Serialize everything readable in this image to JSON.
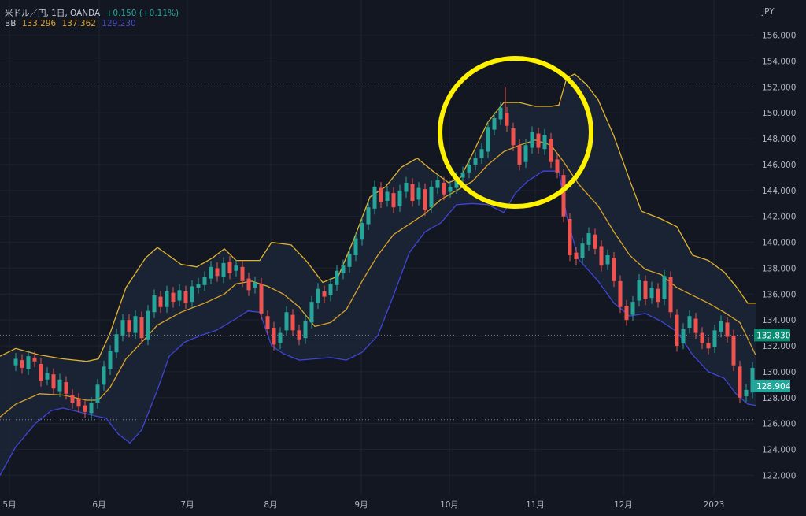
{
  "header": {
    "symbol": "米ドル／円, 1日, OANDA",
    "change": "+0.150 (+0.11%)",
    "indicator_label": "BB",
    "bb_mid": "133.296",
    "bb_upper": "137.362",
    "bb_lower": "129.230"
  },
  "colors": {
    "background": "#131722",
    "grid": "#1f2330",
    "up": "#26a69a",
    "down": "#ef5350",
    "bb_upper": "#e0b32f",
    "bb_mid": "#d9a22a",
    "bb_lower": "#3f45d6",
    "band_fill": "#1c2636",
    "highlight": "#fff200",
    "last_price_tag": "#26a69a",
    "price_line_tag": "#0b8a74"
  },
  "chart_data": {
    "type": "candlestick",
    "currency_label": "JPY",
    "ylim": [
      120.5,
      157.5
    ],
    "y_ticks": [
      "122.000",
      "124.000",
      "126.000",
      "128.000",
      "130.000",
      "132.000",
      "134.000",
      "136.000",
      "138.000",
      "140.000",
      "142.000",
      "144.000",
      "146.000",
      "148.000",
      "150.000",
      "152.000",
      "154.000",
      "156.000"
    ],
    "x_labels": [
      "5月",
      "6月",
      "7月",
      "8月",
      "9月",
      "10月",
      "11月",
      "12月",
      "2023"
    ],
    "reference_lines": [
      152.0,
      132.83,
      126.3
    ],
    "price_tags": {
      "current": "132.830",
      "last": "128.904"
    },
    "series": [
      {
        "name": "upper",
        "points": [
          [
            0,
            131.2
          ],
          [
            20,
            131.8
          ],
          [
            50,
            131.3
          ],
          [
            80,
            131.0
          ],
          [
            110,
            130.8
          ],
          [
            125,
            131.0
          ],
          [
            140,
            133.0
          ],
          [
            160,
            136.5
          ],
          [
            185,
            138.8
          ],
          [
            200,
            139.6
          ],
          [
            230,
            138.3
          ],
          [
            250,
            138.1
          ],
          [
            270,
            138.8
          ],
          [
            285,
            139.5
          ],
          [
            300,
            138.6
          ],
          [
            330,
            138.6
          ],
          [
            345,
            140.0
          ],
          [
            370,
            139.8
          ],
          [
            390,
            138.5
          ],
          [
            410,
            136.9
          ],
          [
            430,
            137.4
          ],
          [
            450,
            140.3
          ],
          [
            470,
            143.5
          ],
          [
            490,
            144.3
          ],
          [
            510,
            145.8
          ],
          [
            530,
            146.5
          ],
          [
            550,
            145.5
          ],
          [
            570,
            144.6
          ],
          [
            585,
            145.0
          ],
          [
            600,
            146.8
          ],
          [
            620,
            149.3
          ],
          [
            640,
            150.8
          ],
          [
            660,
            150.8
          ],
          [
            680,
            150.5
          ],
          [
            700,
            150.5
          ],
          [
            710,
            150.6
          ],
          [
            720,
            152.7
          ],
          [
            730,
            153.0
          ],
          [
            745,
            152.2
          ],
          [
            760,
            151.0
          ],
          [
            780,
            148.2
          ],
          [
            800,
            144.8
          ],
          [
            815,
            142.4
          ],
          [
            840,
            141.8
          ],
          [
            860,
            141.2
          ],
          [
            880,
            139.0
          ],
          [
            900,
            138.6
          ],
          [
            920,
            137.7
          ],
          [
            935,
            136.6
          ],
          [
            950,
            135.3
          ],
          [
            960,
            135.3
          ]
        ]
      },
      {
        "name": "mid",
        "points": [
          [
            0,
            126.5
          ],
          [
            20,
            127.5
          ],
          [
            50,
            128.3
          ],
          [
            80,
            128.2
          ],
          [
            110,
            127.8
          ],
          [
            125,
            127.8
          ],
          [
            140,
            128.8
          ],
          [
            160,
            131.0
          ],
          [
            185,
            132.6
          ],
          [
            200,
            133.6
          ],
          [
            230,
            134.6
          ],
          [
            260,
            135.3
          ],
          [
            285,
            136.0
          ],
          [
            300,
            136.8
          ],
          [
            320,
            137.0
          ],
          [
            340,
            136.6
          ],
          [
            360,
            136.0
          ],
          [
            380,
            135.0
          ],
          [
            400,
            133.5
          ],
          [
            420,
            133.8
          ],
          [
            440,
            134.8
          ],
          [
            460,
            137.0
          ],
          [
            480,
            139.0
          ],
          [
            500,
            140.6
          ],
          [
            520,
            141.4
          ],
          [
            540,
            142.2
          ],
          [
            560,
            143.3
          ],
          [
            580,
            144.0
          ],
          [
            600,
            144.7
          ],
          [
            620,
            146.0
          ],
          [
            640,
            147.0
          ],
          [
            660,
            147.5
          ],
          [
            680,
            147.9
          ],
          [
            700,
            147.5
          ],
          [
            715,
            146.3
          ],
          [
            735,
            144.5
          ],
          [
            760,
            142.8
          ],
          [
            780,
            140.8
          ],
          [
            800,
            139.0
          ],
          [
            820,
            137.9
          ],
          [
            840,
            137.5
          ],
          [
            860,
            136.5
          ],
          [
            880,
            135.9
          ],
          [
            900,
            135.3
          ],
          [
            920,
            134.6
          ],
          [
            940,
            133.8
          ],
          [
            960,
            131.3
          ]
        ]
      },
      {
        "name": "lower",
        "points": [
          [
            0,
            122.0
          ],
          [
            20,
            124.2
          ],
          [
            45,
            126.0
          ],
          [
            65,
            127.0
          ],
          [
            80,
            127.2
          ],
          [
            100,
            126.9
          ],
          [
            120,
            126.6
          ],
          [
            135,
            126.4
          ],
          [
            150,
            125.2
          ],
          [
            165,
            124.5
          ],
          [
            180,
            125.5
          ],
          [
            200,
            128.6
          ],
          [
            215,
            131.2
          ],
          [
            235,
            132.3
          ],
          [
            255,
            132.8
          ],
          [
            275,
            133.2
          ],
          [
            300,
            134.1
          ],
          [
            315,
            134.7
          ],
          [
            330,
            134.6
          ],
          [
            345,
            132.0
          ],
          [
            360,
            131.4
          ],
          [
            380,
            130.9
          ],
          [
            400,
            131.0
          ],
          [
            420,
            131.1
          ],
          [
            440,
            130.9
          ],
          [
            460,
            131.5
          ],
          [
            480,
            132.8
          ],
          [
            500,
            135.9
          ],
          [
            520,
            139.2
          ],
          [
            540,
            140.8
          ],
          [
            560,
            141.5
          ],
          [
            580,
            142.9
          ],
          [
            600,
            143.0
          ],
          [
            620,
            142.9
          ],
          [
            640,
            142.3
          ],
          [
            655,
            143.8
          ],
          [
            670,
            144.7
          ],
          [
            690,
            145.5
          ],
          [
            710,
            145.5
          ],
          [
            720,
            142.0
          ],
          [
            735,
            138.7
          ],
          [
            760,
            137.0
          ],
          [
            780,
            135.3
          ],
          [
            800,
            134.3
          ],
          [
            820,
            134.5
          ],
          [
            840,
            133.9
          ],
          [
            860,
            133.1
          ],
          [
            880,
            131.3
          ],
          [
            900,
            130.0
          ],
          [
            920,
            129.5
          ],
          [
            935,
            128.3
          ],
          [
            950,
            127.5
          ],
          [
            960,
            127.4
          ]
        ]
      }
    ],
    "candles": [
      [
        20,
        130.5,
        131.0
      ],
      [
        28,
        130.9,
        130.3
      ],
      [
        36,
        130.2,
        131.2
      ],
      [
        44,
        131.1,
        130.8
      ],
      [
        52,
        130.6,
        129.3
      ],
      [
        60,
        129.4,
        129.9
      ],
      [
        68,
        129.8,
        128.7
      ],
      [
        76,
        128.5,
        129.4
      ],
      [
        84,
        129.2,
        128.3
      ],
      [
        92,
        128.2,
        127.6
      ],
      [
        100,
        127.9,
        127.3
      ],
      [
        108,
        127.4,
        126.9
      ],
      [
        116,
        126.8,
        127.6
      ],
      [
        124,
        127.6,
        129.0
      ],
      [
        132,
        129.0,
        130.4
      ],
      [
        140,
        130.2,
        131.6
      ],
      [
        148,
        131.5,
        132.9
      ],
      [
        156,
        132.8,
        134.0
      ],
      [
        164,
        134.0,
        133.1
      ],
      [
        172,
        133.0,
        134.3
      ],
      [
        180,
        134.2,
        132.6
      ],
      [
        188,
        132.5,
        134.7
      ],
      [
        196,
        134.6,
        135.9
      ],
      [
        204,
        135.8,
        135.0
      ],
      [
        212,
        135.0,
        136.2
      ],
      [
        220,
        136.1,
        135.4
      ],
      [
        228,
        135.5,
        136.3
      ],
      [
        236,
        136.2,
        135.3
      ],
      [
        244,
        135.4,
        136.6
      ],
      [
        252,
        136.5,
        136.8
      ],
      [
        260,
        136.7,
        137.3
      ],
      [
        268,
        137.2,
        138.1
      ],
      [
        276,
        138.0,
        137.4
      ],
      [
        284,
        137.3,
        138.4
      ],
      [
        292,
        138.5,
        137.6
      ],
      [
        300,
        137.8,
        138.2
      ],
      [
        308,
        138.1,
        137.0
      ],
      [
        316,
        137.2,
        136.3
      ],
      [
        324,
        136.5,
        136.9
      ],
      [
        332,
        136.8,
        134.5
      ],
      [
        340,
        134.3,
        133.3
      ],
      [
        348,
        133.4,
        132.1
      ],
      [
        356,
        132.2,
        133.0
      ],
      [
        364,
        133.2,
        134.6
      ],
      [
        372,
        134.4,
        133.2
      ],
      [
        380,
        133.2,
        132.5
      ],
      [
        388,
        132.6,
        133.9
      ],
      [
        396,
        133.8,
        135.4
      ],
      [
        404,
        135.3,
        136.4
      ],
      [
        412,
        136.2,
        135.8
      ],
      [
        420,
        135.9,
        136.8
      ],
      [
        428,
        136.7,
        137.8
      ],
      [
        436,
        137.6,
        138.2
      ],
      [
        444,
        138.1,
        139.1
      ],
      [
        452,
        139.0,
        140.3
      ],
      [
        460,
        140.2,
        141.5
      ],
      [
        468,
        141.4,
        142.7
      ],
      [
        476,
        142.6,
        144.3
      ],
      [
        484,
        144.2,
        143.1
      ],
      [
        492,
        143.2,
        143.9
      ],
      [
        500,
        143.8,
        142.7
      ],
      [
        508,
        142.8,
        144.0
      ],
      [
        516,
        143.9,
        144.6
      ],
      [
        524,
        144.5,
        143.2
      ],
      [
        532,
        143.3,
        144.2
      ],
      [
        540,
        144.1,
        142.5
      ],
      [
        548,
        142.7,
        144.3
      ],
      [
        556,
        144.2,
        144.8
      ],
      [
        564,
        144.6,
        143.7
      ],
      [
        572,
        143.9,
        144.3
      ],
      [
        580,
        144.2,
        145.0
      ],
      [
        588,
        145.0,
        145.4
      ],
      [
        596,
        145.4,
        146.0
      ],
      [
        604,
        146.0,
        146.5
      ],
      [
        612,
        146.5,
        147.2
      ],
      [
        620,
        147.0,
        148.9
      ],
      [
        628,
        148.7,
        149.6
      ],
      [
        636,
        149.5,
        150.4
      ],
      [
        644,
        150.0,
        149.0
      ],
      [
        652,
        148.8,
        147.5
      ],
      [
        660,
        147.5,
        146.0
      ],
      [
        668,
        146.2,
        147.5
      ],
      [
        676,
        147.3,
        148.5
      ],
      [
        684,
        148.4,
        147.3
      ],
      [
        692,
        147.2,
        148.3
      ],
      [
        700,
        148.0,
        146.2
      ],
      [
        708,
        146.4,
        145.4
      ],
      [
        716,
        145.2,
        142.0
      ],
      [
        724,
        141.8,
        139.0
      ],
      [
        732,
        139.2,
        138.7
      ],
      [
        740,
        138.8,
        139.9
      ],
      [
        748,
        139.8,
        140.7
      ],
      [
        756,
        140.6,
        139.5
      ],
      [
        764,
        139.7,
        138.2
      ],
      [
        772,
        138.3,
        139.0
      ],
      [
        780,
        138.8,
        137.0
      ],
      [
        788,
        137.0,
        135.0
      ],
      [
        796,
        135.1,
        134.0
      ],
      [
        804,
        134.4,
        135.4
      ],
      [
        812,
        135.5,
        137.1
      ],
      [
        820,
        137.0,
        135.6
      ],
      [
        828,
        135.7,
        136.5
      ],
      [
        836,
        136.4,
        135.4
      ],
      [
        844,
        135.6,
        137.4
      ],
      [
        852,
        137.3,
        134.6
      ],
      [
        860,
        134.4,
        132.0
      ],
      [
        868,
        132.2,
        133.3
      ],
      [
        876,
        133.4,
        134.3
      ],
      [
        884,
        134.1,
        133.0
      ],
      [
        892,
        133.0,
        132.2
      ],
      [
        900,
        132.2,
        131.8
      ],
      [
        908,
        131.9,
        133.2
      ],
      [
        916,
        133.1,
        133.9
      ],
      [
        924,
        133.8,
        132.7
      ],
      [
        932,
        132.8,
        130.5
      ],
      [
        940,
        130.4,
        128.0
      ],
      [
        948,
        128.1,
        128.6
      ],
      [
        956,
        128.4,
        130.3
      ]
    ]
  }
}
